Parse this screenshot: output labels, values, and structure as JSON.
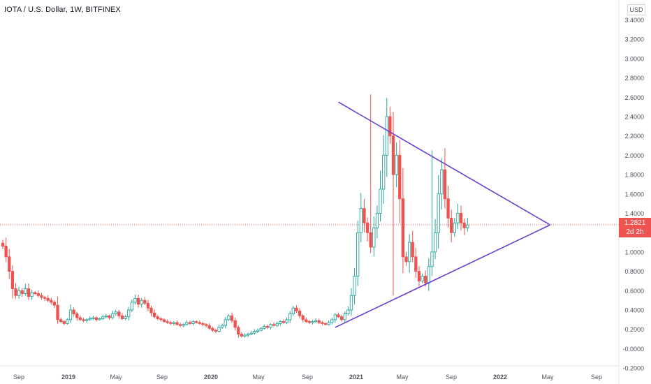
{
  "title": "IOTA / U.S. Dollar, 1W, BITFINEX",
  "currency_button": "USD",
  "last_price": "1.2821",
  "countdown": "2d 2h",
  "colors": {
    "up": "#26a69a",
    "down": "#ef5350",
    "trendline": "#6a3fd1",
    "price_line": "#ef5350",
    "axis_text": "#50535e"
  },
  "chart_data": {
    "type": "candlestick",
    "interval": "1W",
    "x_tick_labels": [
      "Sep",
      "2019",
      "May",
      "Sep",
      "2020",
      "May",
      "Sep",
      "2021",
      "May",
      "Sep",
      "2022",
      "May",
      "Sep"
    ],
    "y_tick_labels": [
      "3.4000",
      "3.2000",
      "3.0000",
      "2.8000",
      "2.6000",
      "2.4000",
      "2.2000",
      "2.0000",
      "1.8000",
      "1.6000",
      "1.4000",
      "1.2000",
      "1.0000",
      "0.8000",
      "0.6000",
      "0.4000",
      "0.2000",
      "-0.0000",
      "-0.2000"
    ],
    "ylim": [
      -0.2,
      3.4
    ],
    "last_price_line": 1.2821,
    "series_close_weekly": [
      1.06,
      0.95,
      0.8,
      0.62,
      0.55,
      0.6,
      0.57,
      0.62,
      0.54,
      0.58,
      0.57,
      0.55,
      0.53,
      0.52,
      0.5,
      0.48,
      0.45,
      0.3,
      0.28,
      0.26,
      0.3,
      0.4,
      0.36,
      0.32,
      0.3,
      0.29,
      0.3,
      0.31,
      0.32,
      0.3,
      0.31,
      0.33,
      0.34,
      0.32,
      0.36,
      0.38,
      0.34,
      0.31,
      0.33,
      0.4,
      0.48,
      0.52,
      0.46,
      0.5,
      0.47,
      0.42,
      0.37,
      0.33,
      0.31,
      0.3,
      0.28,
      0.27,
      0.26,
      0.27,
      0.25,
      0.24,
      0.25,
      0.27,
      0.26,
      0.28,
      0.27,
      0.26,
      0.25,
      0.24,
      0.21,
      0.19,
      0.18,
      0.22,
      0.24,
      0.3,
      0.34,
      0.29,
      0.22,
      0.15,
      0.13,
      0.14,
      0.15,
      0.16,
      0.18,
      0.19,
      0.21,
      0.23,
      0.22,
      0.25,
      0.24,
      0.26,
      0.28,
      0.27,
      0.3,
      0.36,
      0.42,
      0.39,
      0.34,
      0.3,
      0.28,
      0.27,
      0.28,
      0.29,
      0.27,
      0.26,
      0.25,
      0.27,
      0.3,
      0.35,
      0.33,
      0.3,
      0.36,
      0.4,
      0.55,
      0.75,
      1.2,
      1.45,
      1.3,
      1.2,
      1.05,
      1.25,
      1.4,
      1.65,
      2.0,
      2.4,
      2.2,
      1.8,
      2.0,
      1.55,
      0.95,
      0.9,
      1.1,
      0.95,
      0.8,
      0.7,
      0.75,
      0.68,
      0.85,
      1.0,
      1.2,
      1.6,
      1.85,
      1.55,
      1.35,
      1.2,
      1.3,
      1.4,
      1.3,
      1.25,
      1.28
    ],
    "annotations": [
      {
        "type": "trendline",
        "from": {
          "week": 104,
          "price": 2.55
        },
        "to": {
          "week": 151,
          "price": 1.28
        }
      },
      {
        "type": "trendline",
        "from": {
          "week": 103,
          "price": 0.22
        },
        "to": {
          "week": 151,
          "price": 1.28
        }
      }
    ]
  }
}
